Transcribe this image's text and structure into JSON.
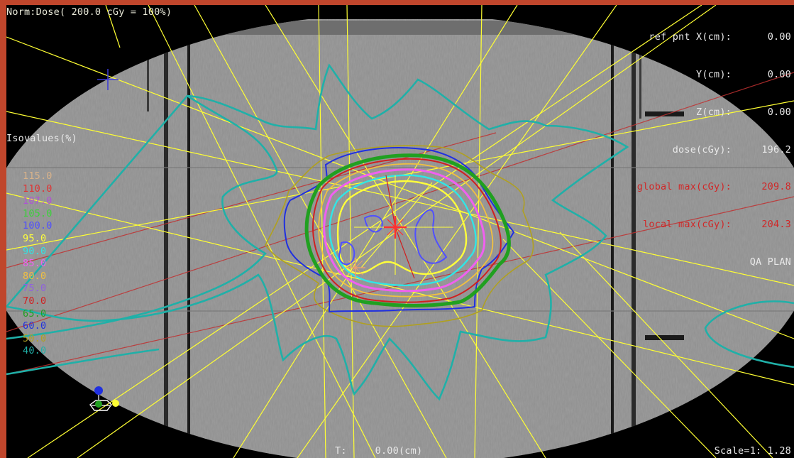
{
  "normalization": "Norm:Dose( 200.0 cGy = 100%)",
  "ref_point": [
    {
      "label": "ref pnt X(cm):",
      "value": "0.00",
      "color": "#e8e8e8"
    },
    {
      "label": "Y(cm):",
      "value": "0.00",
      "color": "#e8e8e8"
    },
    {
      "label": "Z(cm):",
      "value": "0.00",
      "color": "#e8e8e8"
    },
    {
      "label": "dose(cGy):",
      "value": "196.2",
      "color": "#e8e8e8"
    },
    {
      "label": "global max(cGy):",
      "value": "209.8",
      "color": "#d02828"
    },
    {
      "label": "local max(cGy):",
      "value": "204.3",
      "color": "#d02828"
    }
  ],
  "plan_name": "QA PLAN",
  "isovalues": {
    "title": "Isovalues(%)",
    "levels": [
      {
        "value": "115.0",
        "color": "#d8b28a"
      },
      {
        "value": "110.0",
        "color": "#e03232"
      },
      {
        "value": "107.0",
        "color": "#b050d8"
      },
      {
        "value": "105.0",
        "color": "#3ad23a"
      },
      {
        "value": "100.0",
        "color": "#5050ff"
      },
      {
        "value": "95.0",
        "color": "#ffff3a"
      },
      {
        "value": "90.0",
        "color": "#30e6e6"
      },
      {
        "value": "85.0",
        "color": "#f060f0"
      },
      {
        "value": "80.0",
        "color": "#f0c040"
      },
      {
        "value": "75.0",
        "color": "#9060e0"
      },
      {
        "value": "70.0",
        "color": "#d02020"
      },
      {
        "value": "65.0",
        "color": "#20a020"
      },
      {
        "value": "60.0",
        "color": "#2030e0"
      },
      {
        "value": "50.0",
        "color": "#b0a020"
      },
      {
        "value": "40.0",
        "color": "#20b0a8"
      }
    ]
  },
  "slice_position": {
    "label": "T:",
    "value": "0.00(cm)"
  },
  "scale": "Scale=1: 1.28",
  "colors": {
    "frame": "#c0462c",
    "beam_lines": "#ffff33",
    "reference_lines": "#c03030",
    "isocenter_marker": "#ff3030"
  },
  "icons": [
    "crosshair-icon",
    "orientation-widget-icon",
    "isocenter-marker-icon"
  ]
}
